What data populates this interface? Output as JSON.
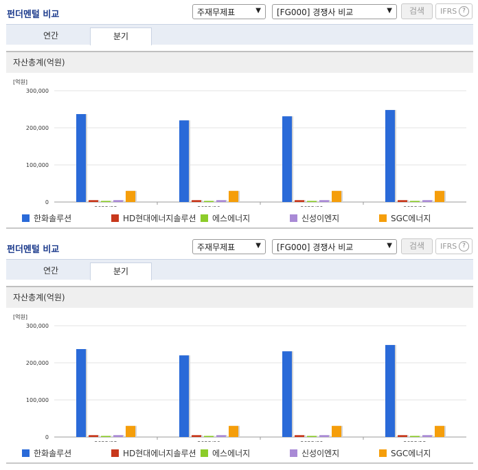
{
  "panels": [
    {
      "title": "펀더멘털 비교",
      "select_item": "주재무제표",
      "select_group": "[FG000] 경쟁사 비교",
      "search_label": "검색",
      "ifrs_label": "IFRS",
      "ifrs_help": "?",
      "tabs": [
        "연간",
        "분기"
      ],
      "active_tab": "분기",
      "section_title": "자산총계(억원)"
    },
    {
      "title": "펀더멘털 비교",
      "select_item": "주재무제표",
      "select_group": "[FG000] 경쟁사 비교",
      "search_label": "검색",
      "ifrs_label": "IFRS",
      "ifrs_help": "?",
      "tabs": [
        "연간",
        "분기"
      ],
      "active_tab": "분기",
      "section_title": "자산총계(억원)"
    }
  ],
  "chart_data": [
    {
      "type": "bar",
      "unit_label": "[억원]",
      "categories": [
        "2023/03",
        "2023/06",
        "2023/09",
        "2023/12"
      ],
      "ylim": [
        0,
        300000
      ],
      "yticks": [
        "0",
        "100,000",
        "200,000",
        "300,000"
      ],
      "grid": true,
      "legend_position": "bottom",
      "series": [
        {
          "name": "한화솔루션",
          "color": "#2a6ad8",
          "values": [
            237000,
            220000,
            231000,
            248000
          ]
        },
        {
          "name": "HD현대에너지솔루션",
          "color": "#c8381c",
          "values": [
            5000,
            5000,
            5000,
            5000
          ]
        },
        {
          "name": "에스에너지",
          "color": "#8ccc2a",
          "values": [
            3000,
            3000,
            3000,
            3000
          ]
        },
        {
          "name": "신성이엔지",
          "color": "#a98ad6",
          "values": [
            5000,
            5000,
            5000,
            5000
          ]
        },
        {
          "name": "SGC에너지",
          "color": "#f59e0b",
          "values": [
            30000,
            30000,
            30000,
            30000
          ]
        }
      ]
    },
    {
      "type": "bar",
      "unit_label": "[억원]",
      "categories": [
        "2023/03",
        "2023/06",
        "2023/09",
        "2023/12"
      ],
      "ylim": [
        0,
        300000
      ],
      "yticks": [
        "0",
        "100,000",
        "200,000",
        "300,000"
      ],
      "grid": true,
      "legend_position": "bottom",
      "series": [
        {
          "name": "한화솔루션",
          "color": "#2a6ad8",
          "values": [
            237000,
            220000,
            231000,
            248000
          ]
        },
        {
          "name": "HD현대에너지솔루션",
          "color": "#c8381c",
          "values": [
            5000,
            5000,
            5000,
            5000
          ]
        },
        {
          "name": "에스에너지",
          "color": "#8ccc2a",
          "values": [
            3000,
            3000,
            3000,
            3000
          ]
        },
        {
          "name": "신성이엔지",
          "color": "#a98ad6",
          "values": [
            5000,
            5000,
            5000,
            5000
          ]
        },
        {
          "name": "SGC에너지",
          "color": "#f59e0b",
          "values": [
            30000,
            30000,
            30000,
            30000
          ]
        }
      ]
    }
  ]
}
